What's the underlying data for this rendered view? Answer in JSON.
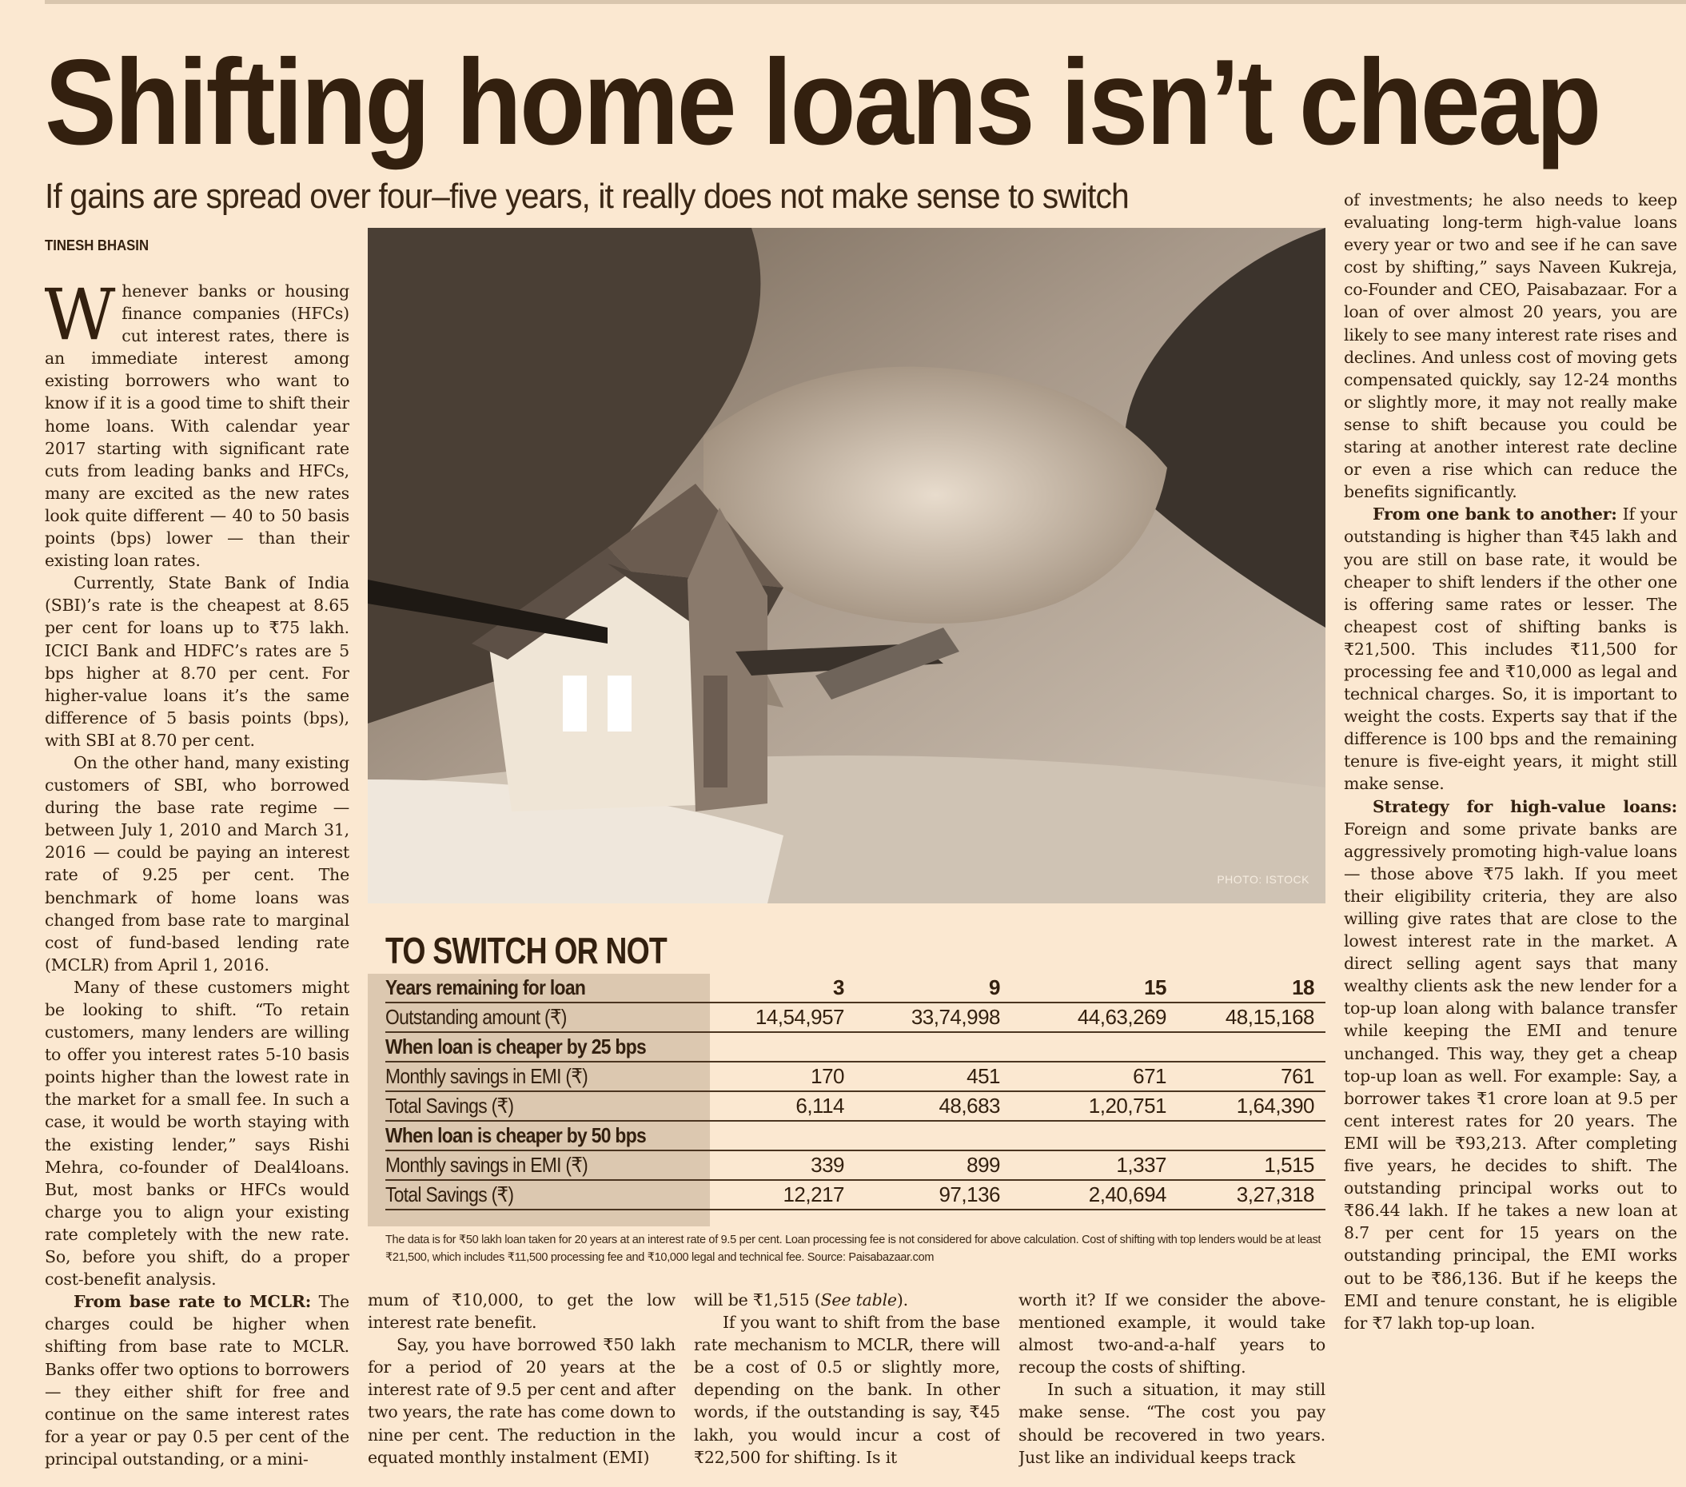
{
  "headline": "Shifting home loans isn’t cheap",
  "subtitle": "If gains are spread over four–five years, it really does not make sense to switch",
  "byline": "TINESH BHASIN",
  "photo_credit": "PHOTO: ISTOCK",
  "left_column": {
    "dropcap": "W",
    "paragraphs": [
      [
        {
          "t": "henever banks or housing finance companies (HFCs) cut interest rates, there is an immediate interest among existing borrowers who want to know if it is a good time to shift their home loans. With calendar year 2017 starting with significant rate cuts from leading banks and HFCs, many are excited as the new rates look quite different — 40 to 50 basis points (bps) lower — than their existing loan rates."
        }
      ],
      [
        {
          "t": "Currently, State Bank of India (SBI)’s rate is the cheapest at 8.65 per cent for loans up to ₹75 lakh. ICICI Bank and HDFC’s rates are 5 bps higher at 8.70 per cent. For higher-value loans it’s the same difference of 5 basis points (bps), with SBI at 8.70 per cent."
        }
      ],
      [
        {
          "t": "On the other hand, many existing customers of SBI, who borrowed during the base rate regime — between July 1, 2010 and March 31, 2016 — could be paying an interest rate of 9.25 per cent. The benchmark of home loans was changed from base rate to marginal cost of fund-based lending rate (MCLR) from April 1, 2016."
        }
      ],
      [
        {
          "t": "Many of these customers might be looking to shift. “To retain customers, many lenders are willing to offer you interest rates 5-10 basis points higher than the lowest rate in the market for a small fee. In such a case, it would be worth staying with the existing lender,” says Rishi Mehra, co-founder of Deal4loans. But, most banks or HFCs would charge you to align your existing rate completely with the new rate. So, before you shift, do a proper cost-benefit analysis."
        }
      ],
      [
        {
          "t": "From base rate to MCLR:",
          "s": "b"
        },
        {
          "t": " The charges could be higher when shifting from base rate to MCLR. Banks offer two options to borrowers — they either shift for free and continue on the same interest rates for a year or pay 0.5 per cent of the principal outstanding, or a mini-"
        }
      ]
    ]
  },
  "bottom_columns": [
    {
      "paragraphs": [
        [
          {
            "t": "mum of ₹10,000, to get the low interest rate benefit."
          }
        ],
        [
          {
            "t": "Say, you have borrowed ₹50 lakh for a period of 20 years at the interest rate of 9.5 per cent and after two years, the rate has come down to nine per cent. The reduction in the equated monthly instalment (EMI)"
          }
        ]
      ]
    },
    {
      "paragraphs": [
        [
          {
            "t": "will be ₹1,515 ("
          },
          {
            "t": "See table",
            "s": "i"
          },
          {
            "t": ")."
          }
        ],
        [
          {
            "t": "If you want to shift from the base rate mechanism to MCLR, there will be a cost of 0.5 or slightly more, depending on the bank. In other words, if the outstanding is say, ₹45 lakh, you would incur a cost of ₹22,500 for shifting. Is it"
          }
        ]
      ]
    },
    {
      "paragraphs": [
        [
          {
            "t": "worth it? If we consider the above-mentioned example, it would take almost two-and-a-half years to recoup the costs of shifting."
          }
        ],
        [
          {
            "t": "In such a situation, it may still make sense. “The cost you pay should be recovered in two years. Just like an individual keeps track"
          }
        ]
      ]
    }
  ],
  "right_column": {
    "paragraphs": [
      [
        {
          "t": "of investments; he also needs to keep evaluating long-term high-value loans every year or two and see if he can save cost by shifting,” says Naveen Kukreja, co-Founder and CEO, Paisabazaar. For a loan of over almost 20 years, you are likely to see many interest rate rises and declines. And unless cost of moving gets compensated quickly, say 12-24 months or slightly more, it may not really make sense to shift because you could be staring at another interest rate decline or even a rise which can reduce the benefits significantly."
        }
      ],
      [
        {
          "t": "From one bank to another:",
          "s": "b"
        },
        {
          "t": " If your outstanding is higher than ₹45 lakh and you are still on base rate, it would be cheaper to shift lenders if the other one is offering same rates or lesser. The cheapest cost of shifting banks is ₹21,500. This includes ₹11,500 for processing fee and ₹10,000 as legal and technical charges. So, it is important to weight the costs. Experts say that if the difference is 100 bps and the remaining tenure is five-eight years, it might still make sense."
        }
      ],
      [
        {
          "t": "Strategy for high-value loans:",
          "s": "b"
        },
        {
          "t": " Foreign and some private banks are aggressively promoting high-value loans — those above ₹75 lakh. If you meet their eligibility criteria, they are also willing give rates that are close to the lowest interest rate in the market. A direct selling agent says that many wealthy clients ask the new lender for a top-up loan along with balance transfer while keeping the EMI and tenure unchanged. This way, they get a cheap top-up loan as well. For example: Say, a borrower takes ₹1 crore loan at 9.5 per cent interest rates for 20 years. The EMI will be ₹93,213. After completing five years, he decides to shift. The outstanding principal works out to ₹86.44 lakh. If he takes a new loan at 8.7 per cent for 15 years on the outstanding principal, the EMI works out to be ₹86,136. But if he keeps the EMI and tenure constant, he is eligible for ₹7 lakh top-up loan."
        }
      ]
    ]
  },
  "table": {
    "title": "TO SWITCH OR NOT",
    "rows": [
      {
        "label": "Years remaining for loan",
        "values": [
          "3",
          "9",
          "15",
          "18"
        ],
        "bold": true
      },
      {
        "label": "Outstanding amount (₹)",
        "values": [
          "14,54,957",
          "33,74,998",
          "44,63,269",
          "48,15,168"
        ]
      },
      {
        "label": "When loan is cheaper by 25 bps",
        "values": [],
        "bold": true
      },
      {
        "label": "Monthly savings in EMI (₹)",
        "values": [
          "170",
          "451",
          "671",
          "761"
        ]
      },
      {
        "label": "Total Savings (₹)",
        "values": [
          "6,114",
          "48,683",
          "1,20,751",
          "1,64,390"
        ]
      },
      {
        "label": "When loan is cheaper by 50 bps",
        "values": [],
        "bold": true
      },
      {
        "label": "Monthly savings in EMI (₹)",
        "values": [
          "339",
          "899",
          "1,337",
          "1,515"
        ]
      },
      {
        "label": "Total Savings (₹)",
        "values": [
          "12,217",
          "97,136",
          "2,40,694",
          "3,27,318"
        ]
      }
    ],
    "footnote": "The data is for ₹50 lakh loan taken for 20 years at an interest rate of 9.5 per cent. Loan processing fee is not considered for above calculation. Cost of shifting with top lenders would be at least ₹21,500, which includes ₹11,500 processing fee and ₹10,000 legal and technical fee.  Source: Paisabazaar.com"
  },
  "colors": {
    "paper": "#fbe8d1",
    "ink": "#33200f",
    "table_shade": "#dcc8b0"
  }
}
